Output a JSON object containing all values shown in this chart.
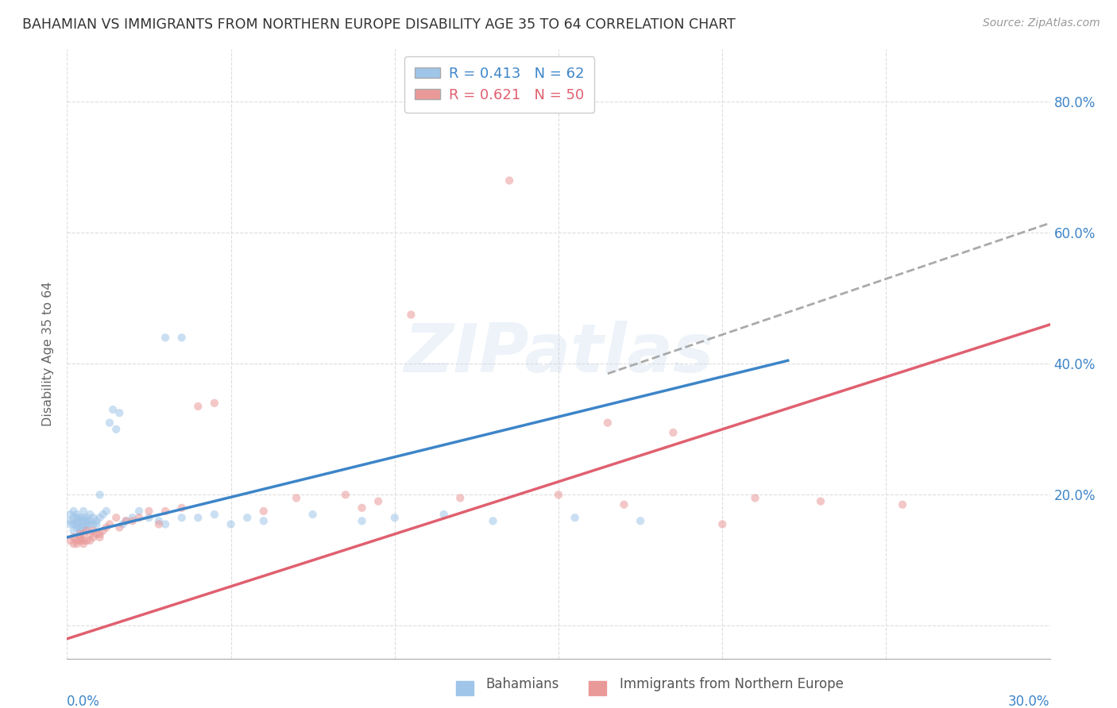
{
  "title": "BAHAMIAN VS IMMIGRANTS FROM NORTHERN EUROPE DISABILITY AGE 35 TO 64 CORRELATION CHART",
  "source": "Source: ZipAtlas.com",
  "ylabel": "Disability Age 35 to 64",
  "xlim": [
    0.0,
    0.3
  ],
  "ylim": [
    -0.05,
    0.88
  ],
  "ytick_values": [
    0.0,
    0.2,
    0.4,
    0.6,
    0.8
  ],
  "ytick_labels": [
    "",
    "20.0%",
    "40.0%",
    "60.0%",
    "80.0%"
  ],
  "xtick_values": [
    0.0,
    0.05,
    0.1,
    0.15,
    0.2,
    0.25,
    0.3
  ],
  "watermark": "ZIPatlas",
  "dot_size": 55,
  "dot_alpha": 0.55,
  "blue_color": "#9fc5e8",
  "pink_color": "#ea9999",
  "blue_line_color": "#3d85c8",
  "pink_line_color": "#e06070",
  "dash_line_color": "#aaaaaa",
  "grid_color": "#dddddd",
  "grid_style": "--",
  "background_color": "#ffffff",
  "legend_blue_label": "R = 0.413   N = 62",
  "legend_pink_label": "R = 0.621   N = 50",
  "blue_line_x": [
    0.0,
    0.22
  ],
  "blue_line_y": [
    0.135,
    0.405
  ],
  "pink_line_x": [
    0.0,
    0.3
  ],
  "pink_line_y": [
    -0.02,
    0.46
  ],
  "dash_line_x": [
    0.165,
    0.3
  ],
  "dash_line_y": [
    0.385,
    0.615
  ],
  "bahamians_x": [
    0.001,
    0.001,
    0.001,
    0.002,
    0.002,
    0.002,
    0.002,
    0.003,
    0.003,
    0.003,
    0.003,
    0.003,
    0.004,
    0.004,
    0.004,
    0.004,
    0.005,
    0.005,
    0.005,
    0.005,
    0.005,
    0.006,
    0.006,
    0.006,
    0.006,
    0.007,
    0.007,
    0.007,
    0.008,
    0.008,
    0.009,
    0.009,
    0.01,
    0.01,
    0.011,
    0.012,
    0.013,
    0.014,
    0.015,
    0.016,
    0.017,
    0.018,
    0.02,
    0.022,
    0.025,
    0.028,
    0.03,
    0.035,
    0.04,
    0.045,
    0.05,
    0.055,
    0.06,
    0.075,
    0.09,
    0.1,
    0.115,
    0.13,
    0.155,
    0.175,
    0.03,
    0.035
  ],
  "bahamians_y": [
    0.155,
    0.16,
    0.17,
    0.145,
    0.155,
    0.165,
    0.175,
    0.15,
    0.155,
    0.16,
    0.165,
    0.17,
    0.145,
    0.15,
    0.16,
    0.165,
    0.15,
    0.155,
    0.16,
    0.165,
    0.175,
    0.15,
    0.155,
    0.16,
    0.165,
    0.155,
    0.16,
    0.17,
    0.155,
    0.165,
    0.155,
    0.16,
    0.165,
    0.2,
    0.17,
    0.175,
    0.31,
    0.33,
    0.3,
    0.325,
    0.155,
    0.16,
    0.165,
    0.175,
    0.165,
    0.16,
    0.155,
    0.165,
    0.165,
    0.17,
    0.155,
    0.165,
    0.16,
    0.17,
    0.16,
    0.165,
    0.17,
    0.16,
    0.165,
    0.16,
    0.44,
    0.44
  ],
  "immigrants_x": [
    0.001,
    0.002,
    0.002,
    0.003,
    0.003,
    0.004,
    0.004,
    0.004,
    0.005,
    0.005,
    0.005,
    0.006,
    0.006,
    0.007,
    0.007,
    0.008,
    0.008,
    0.009,
    0.01,
    0.01,
    0.011,
    0.012,
    0.013,
    0.015,
    0.016,
    0.018,
    0.02,
    0.022,
    0.025,
    0.028,
    0.03,
    0.035,
    0.04,
    0.045,
    0.06,
    0.07,
    0.085,
    0.09,
    0.095,
    0.105,
    0.12,
    0.135,
    0.15,
    0.165,
    0.17,
    0.185,
    0.2,
    0.21,
    0.23,
    0.255
  ],
  "immigrants_y": [
    0.13,
    0.125,
    0.135,
    0.13,
    0.125,
    0.13,
    0.135,
    0.14,
    0.125,
    0.13,
    0.14,
    0.13,
    0.145,
    0.13,
    0.14,
    0.135,
    0.145,
    0.14,
    0.135,
    0.14,
    0.145,
    0.15,
    0.155,
    0.165,
    0.15,
    0.16,
    0.16,
    0.165,
    0.175,
    0.155,
    0.175,
    0.18,
    0.335,
    0.34,
    0.175,
    0.195,
    0.2,
    0.18,
    0.19,
    0.475,
    0.195,
    0.68,
    0.2,
    0.31,
    0.185,
    0.295,
    0.155,
    0.195,
    0.19,
    0.185
  ]
}
